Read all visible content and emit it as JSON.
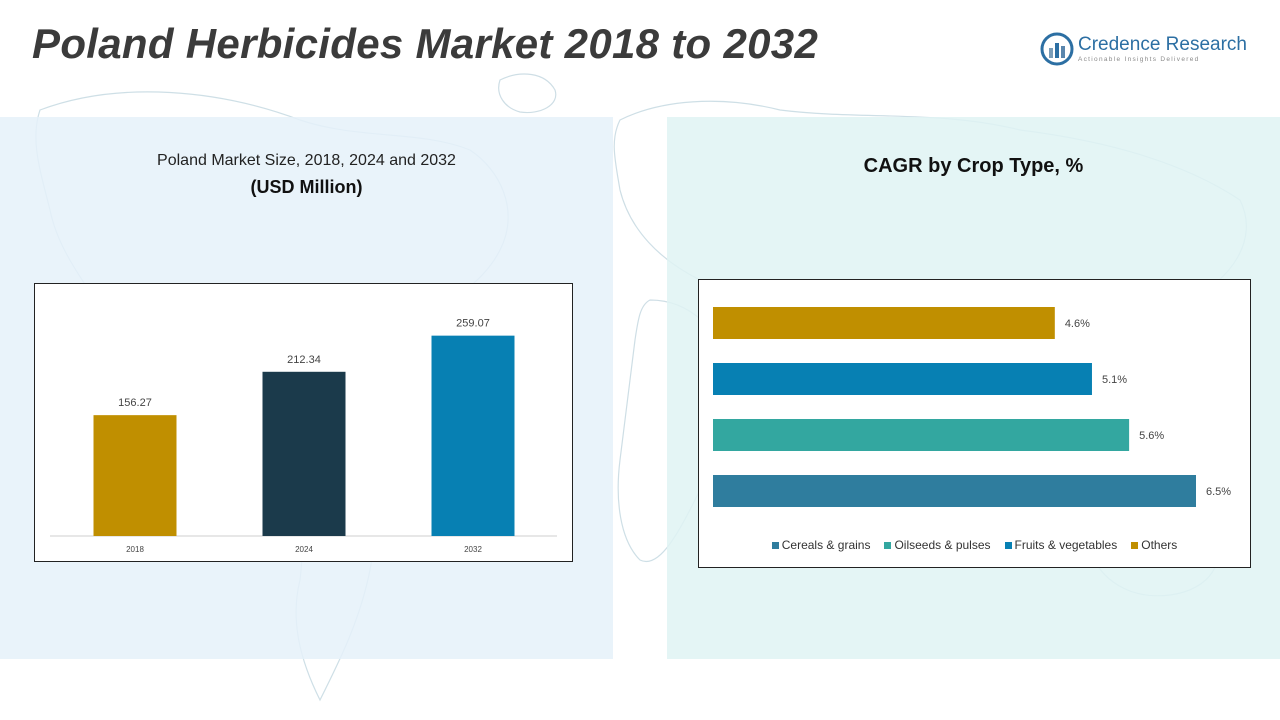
{
  "header": {
    "title": "Poland Herbicides Market 2018 to 2032",
    "logo_name": "Credence Research",
    "logo_tagline": "Actionable Insights Delivered"
  },
  "left_panel": {
    "subtitle": "Poland Market Size, 2018, 2024 and 2032",
    "unit": "(USD Million)"
  },
  "right_panel": {
    "title": "CAGR by Crop Type, %"
  },
  "colors": {
    "gold": "#c08f00",
    "navy": "#1b3a4b",
    "blue": "#0780b3",
    "teal": "#33a7a0",
    "steel": "#2f7d9e"
  },
  "chart_data": [
    {
      "type": "bar",
      "title": "Poland Market Size, 2018, 2024 and 2032",
      "ylabel": "USD Million",
      "categories": [
        "2018",
        "2024",
        "2032"
      ],
      "values": [
        156.27,
        212.34,
        259.07
      ],
      "value_labels": [
        "156.27",
        "212.34",
        "259.07"
      ],
      "colors": [
        "#c08f00",
        "#1b3a4b",
        "#0780b3"
      ],
      "ylim": [
        0,
        300
      ],
      "grid": false
    },
    {
      "type": "bar",
      "orientation": "horizontal",
      "title": "CAGR by Crop Type, %",
      "categories": [
        "Others",
        "Fruits & vegetables",
        "Oilseeds & pulses",
        "Cereals & grains"
      ],
      "values": [
        4.6,
        5.1,
        5.6,
        6.5
      ],
      "value_labels": [
        "4.6%",
        "5.1%",
        "5.6%",
        "6.5%"
      ],
      "colors": [
        "#c08f00",
        "#0780b3",
        "#33a7a0",
        "#2f7d9e"
      ],
      "xlim": [
        0,
        7
      ],
      "grid": false,
      "legend": {
        "position": "bottom",
        "entries": [
          {
            "label": "Cereals & grains",
            "color": "#2f7d9e"
          },
          {
            "label": "Oilseeds & pulses",
            "color": "#33a7a0"
          },
          {
            "label": "Fruits & vegetables",
            "color": "#0780b3"
          },
          {
            "label": "Others",
            "color": "#c08f00"
          }
        ]
      }
    }
  ]
}
